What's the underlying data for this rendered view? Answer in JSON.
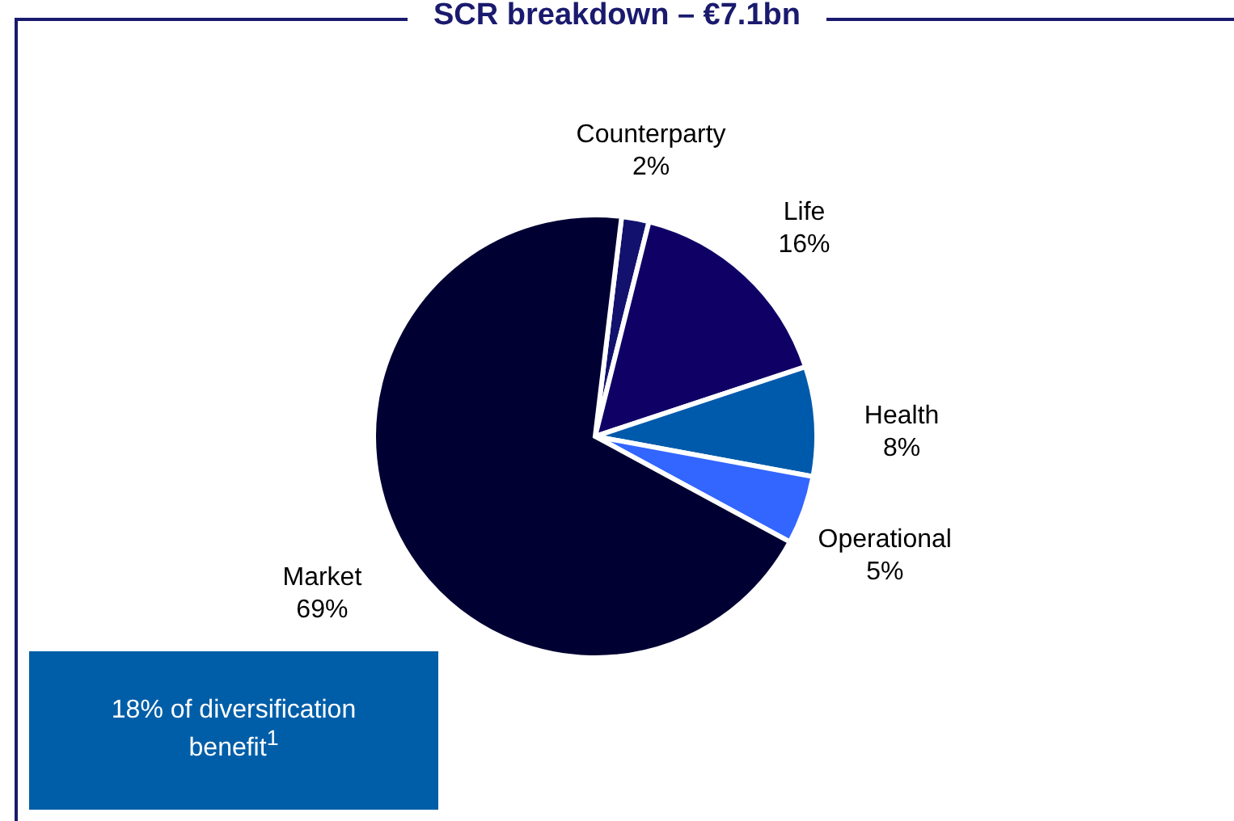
{
  "chart_data": {
    "type": "pie",
    "title": "SCR breakdown – €7.1bn",
    "categories": [
      "Counterparty",
      "Life",
      "Health",
      "Operational",
      "Market"
    ],
    "values": [
      2,
      16,
      8,
      5,
      69
    ],
    "value_labels": [
      "2%",
      "16%",
      "8%",
      "5%",
      "69%"
    ],
    "colors": [
      "#12126e",
      "#0f0066",
      "#005aab",
      "#3366ff",
      "#000033"
    ],
    "annotations": [
      "18% of diversification benefit$^{1}$"
    ]
  }
}
